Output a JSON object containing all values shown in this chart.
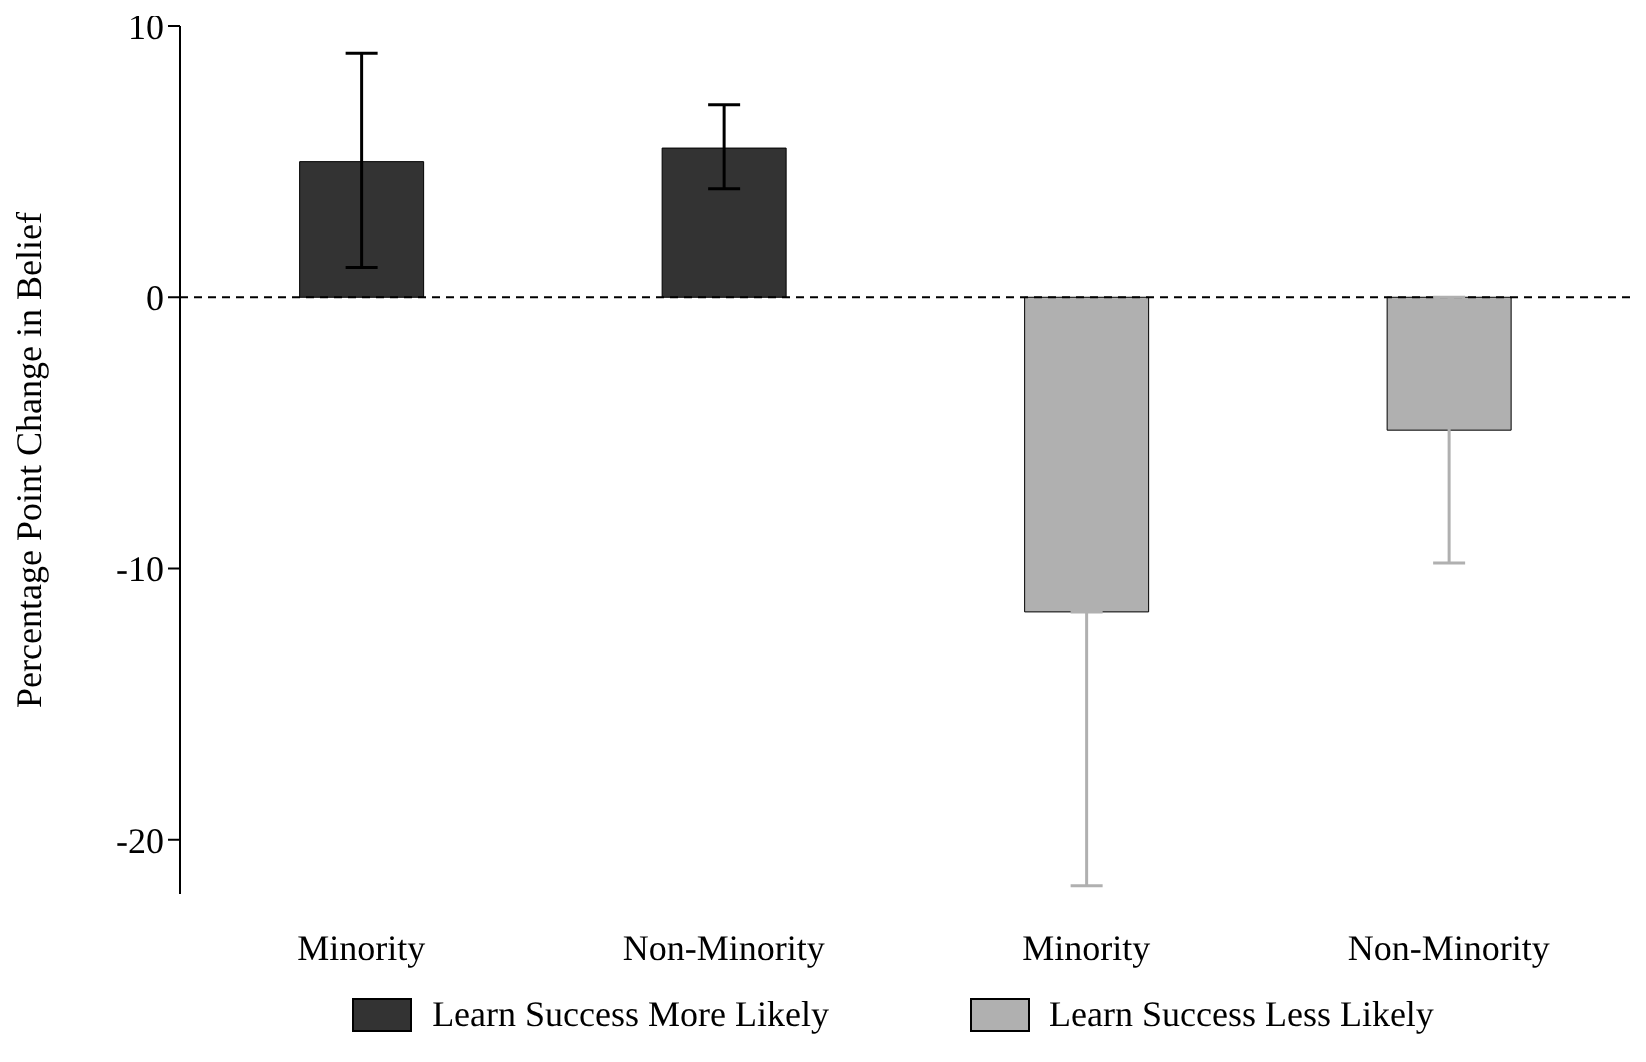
{
  "chart_data": {
    "type": "bar",
    "ylabel": "Percentage Point Change in Belief",
    "categories": [
      "Minority",
      "Non-Minority",
      "Minority",
      "Non-Minority"
    ],
    "series": [
      {
        "name": "Learn Success More Likely",
        "color": "#333333",
        "values": [
          5.0,
          5.5,
          null,
          null
        ],
        "errors": [
          [
            1.1,
            9.0
          ],
          [
            4.0,
            7.1
          ],
          null,
          null
        ]
      },
      {
        "name": "Learn Success Less Likely",
        "color": "#b0b0b0",
        "values": [
          null,
          null,
          -11.6,
          -4.9
        ],
        "errors": [
          null,
          null,
          [
            -21.7,
            -11.6
          ],
          [
            -9.8,
            0.0
          ]
        ]
      }
    ],
    "ylim": [
      -22,
      10
    ],
    "yticks": [
      10,
      0,
      -10,
      -20
    ],
    "grid": false,
    "legend": "bottom",
    "ref_lines": [
      {
        "axis": "y",
        "value": 0,
        "line_style": "dashed",
        "color": "#000000"
      }
    ]
  }
}
